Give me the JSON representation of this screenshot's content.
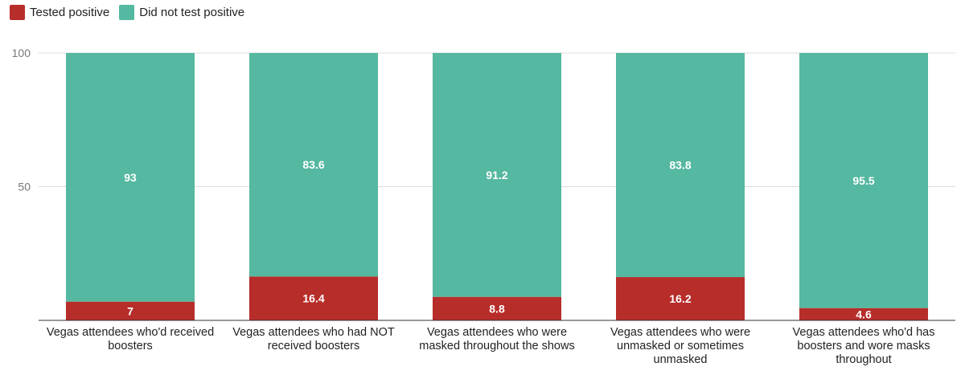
{
  "chart_data": {
    "type": "bar",
    "stacked": true,
    "categories": [
      "Vegas attendees who'd received boosters",
      "Vegas attendees who had NOT received boosters",
      "Vegas attendees who were masked throughout the shows",
      "Vegas attendees who were unmasked or sometimes unmasked",
      "Vegas attendees who'd has boosters and wore masks throughout"
    ],
    "series": [
      {
        "name": "Tested positive",
        "color": "#b72d2a",
        "values": [
          7,
          16.4,
          8.8,
          16.2,
          4.6
        ]
      },
      {
        "name": "Did not test positive",
        "color": "#55b8a0",
        "values": [
          93,
          83.6,
          91.2,
          83.8,
          95.5
        ]
      }
    ],
    "ylim": [
      0,
      100
    ],
    "yticks": [
      50,
      100
    ],
    "grid": true,
    "legend_position": "top-left",
    "data_labels": true
  }
}
